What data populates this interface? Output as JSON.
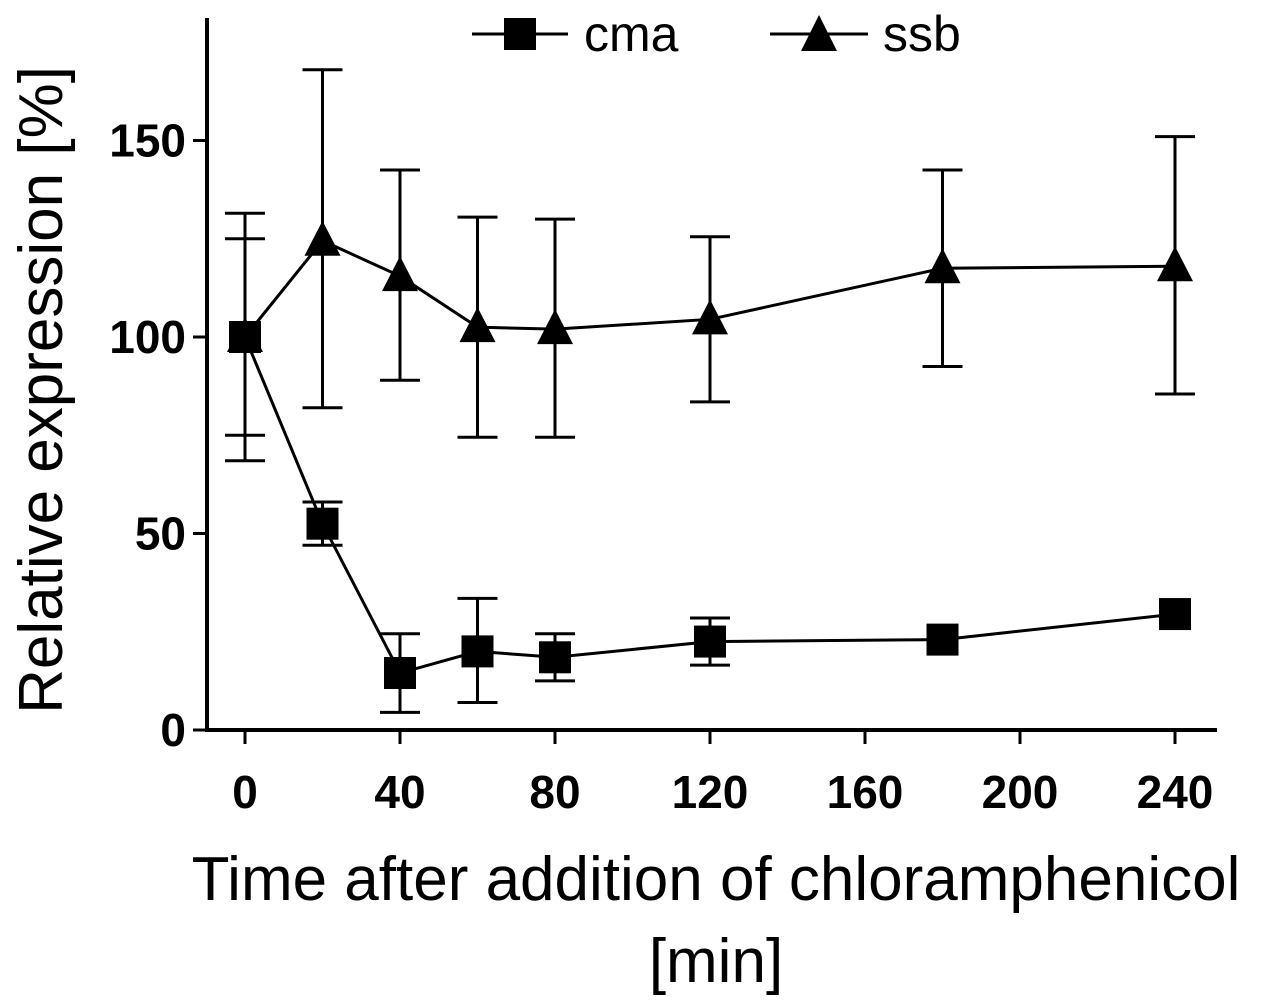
{
  "chart_data": {
    "type": "line",
    "title": "",
    "xlabel_line1": "Time after addition of chloramphenicol",
    "xlabel_line2": "[min]",
    "ylabel": "Relative expression [%]",
    "x_ticks": [
      "0",
      "40",
      "80",
      "120",
      "160",
      "200",
      "240"
    ],
    "y_ticks": [
      "0",
      "50",
      "100",
      "150"
    ],
    "xlim": [
      -10,
      250
    ],
    "ylim": [
      0,
      180
    ],
    "legend_position": "top-center",
    "series": [
      {
        "name": "cma",
        "marker": "square",
        "x": [
          0,
          20,
          40,
          60,
          80,
          120,
          180,
          240
        ],
        "y": [
          100,
          52.5,
          14.5,
          20,
          18.5,
          22.5,
          23,
          29.5
        ],
        "err_low": [
          31.5,
          5.5,
          10,
          13,
          6,
          6,
          0,
          0
        ],
        "err_high": [
          25,
          5.5,
          10,
          13.5,
          6,
          6,
          0,
          0
        ]
      },
      {
        "name": "ssb",
        "marker": "triangle",
        "x": [
          0,
          20,
          40,
          60,
          80,
          120,
          180,
          240
        ],
        "y": [
          100,
          124.5,
          115.5,
          102.5,
          102,
          104.5,
          117.5,
          118
        ],
        "err_low": [
          25,
          42.5,
          26.5,
          28,
          27.5,
          21,
          25,
          32.5
        ],
        "err_high": [
          31.5,
          43.5,
          27,
          28,
          28,
          21,
          25,
          33
        ]
      }
    ]
  }
}
